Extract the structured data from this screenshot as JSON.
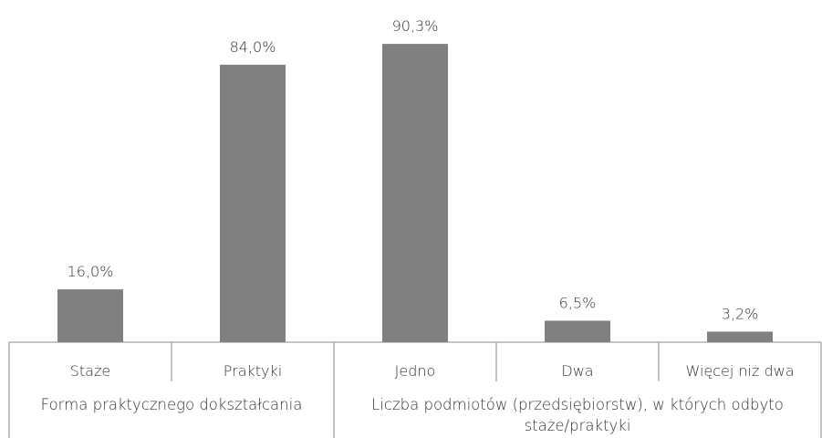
{
  "chart_data": {
    "type": "bar",
    "color": "#808080",
    "groups": [
      {
        "name": "Forma praktycznego dokształcania",
        "categories": [
          "Staże",
          "Praktyki"
        ],
        "values": [
          16.0,
          84.0
        ],
        "value_labels": [
          "16,0%",
          "84,0%"
        ]
      },
      {
        "name": "Liczba podmiotów (przedsiębiorstw), w których odbyto staże/praktyki",
        "categories": [
          "Jedno",
          "Dwa",
          "Więcej niż dwa"
        ],
        "values": [
          90.3,
          6.5,
          3.2
        ],
        "value_labels": [
          "90,3%",
          "6,5%",
          "3,2%"
        ]
      }
    ]
  }
}
